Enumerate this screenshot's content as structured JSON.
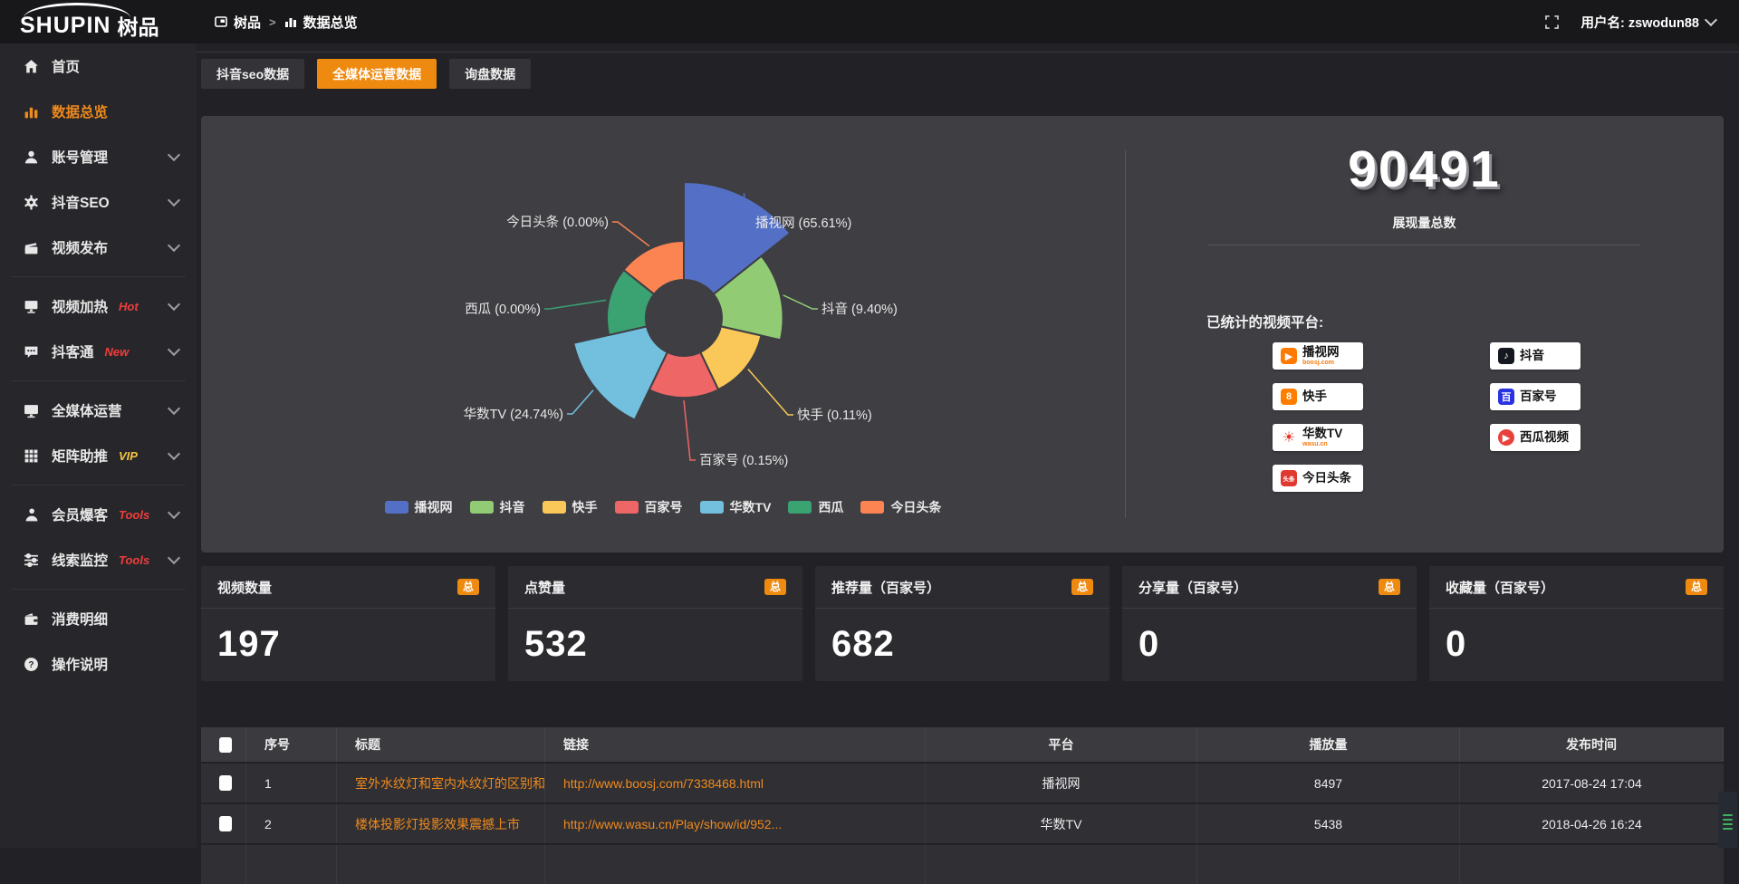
{
  "topbar": {
    "logo_main": "SHUPIN",
    "logo_cn": "树品",
    "breadcrumb_root": "树品",
    "breadcrumb_sep": ">",
    "breadcrumb_current": "数据总览",
    "username": "用户名: zswodun88"
  },
  "sidebar": {
    "items": [
      {
        "label": "首页",
        "icon": "home",
        "active": false,
        "expandable": false,
        "group_end": false
      },
      {
        "label": "数据总览",
        "icon": "chart-bars",
        "active": true,
        "expandable": false,
        "group_end": false
      },
      {
        "label": "账号管理",
        "icon": "user",
        "active": false,
        "expandable": true,
        "group_end": false
      },
      {
        "label": "抖音SEO",
        "icon": "gear",
        "active": false,
        "expandable": true,
        "group_end": false
      },
      {
        "label": "视频发布",
        "icon": "video-upload",
        "active": false,
        "expandable": true,
        "group_end": true
      },
      {
        "label": "视频加热",
        "icon": "screen",
        "badge": "Hot",
        "badge_color": "#f23c3c",
        "active": false,
        "expandable": true,
        "group_end": false
      },
      {
        "label": "抖客通",
        "icon": "chat",
        "badge": "New",
        "badge_color": "#f23c3c",
        "active": false,
        "expandable": true,
        "group_end": true
      },
      {
        "label": "全媒体运营",
        "icon": "monitor",
        "active": false,
        "expandable": true,
        "group_end": false
      },
      {
        "label": "矩阵助推",
        "icon": "grid",
        "badge": "VIP",
        "badge_color": "#f5c542",
        "active": false,
        "expandable": true,
        "group_end": true
      },
      {
        "label": "会员爆客",
        "icon": "person",
        "badge": "Tools",
        "badge_color": "#f23c3c",
        "active": false,
        "expandable": true,
        "group_end": false
      },
      {
        "label": "线索监控",
        "icon": "sliders",
        "badge": "Tools",
        "badge_color": "#f23c3c",
        "active": false,
        "expandable": true,
        "group_end": true
      },
      {
        "label": "消费明细",
        "icon": "wallet",
        "active": false,
        "expandable": false,
        "group_end": false
      },
      {
        "label": "操作说明",
        "icon": "question",
        "active": false,
        "expandable": false,
        "group_end": false
      }
    ]
  },
  "tabs": [
    {
      "label": "抖音seo数据",
      "active": false
    },
    {
      "label": "全媒体运营数据",
      "active": true
    },
    {
      "label": "询盘数据",
      "active": false
    }
  ],
  "chart_data": {
    "type": "pie",
    "variant": "nightingale-rose",
    "title": "",
    "legend_position": "bottom",
    "items": [
      {
        "name": "播视网",
        "pct": 65.61,
        "label": "播视网 (65.61%)",
        "color": "#5470c6"
      },
      {
        "name": "抖音",
        "pct": 9.4,
        "label": "抖音 (9.40%)",
        "color": "#91cc75"
      },
      {
        "name": "快手",
        "pct": 0.11,
        "label": "快手 (0.11%)",
        "color": "#fac858"
      },
      {
        "name": "百家号",
        "pct": 0.15,
        "label": "百家号 (0.15%)",
        "color": "#ee6666"
      },
      {
        "name": "华数TV",
        "pct": 24.74,
        "label": "华数TV (24.74%)",
        "color": "#73c0de"
      },
      {
        "name": "西瓜",
        "pct": 0.0,
        "label": "西瓜 (0.00%)",
        "color": "#3ba272"
      },
      {
        "name": "今日头条",
        "pct": 0.0,
        "label": "今日头条 (0.00%)",
        "color": "#fc8452"
      }
    ]
  },
  "summary": {
    "total_value": "90491",
    "total_label": "展现量总数",
    "platforms_title": "已统计的视频平台:",
    "platforms_left": [
      {
        "name": "播视网",
        "sub": "boosj.com",
        "icon": "boosj",
        "icon_glyph": "▶",
        "icon_bg": "#ff7a00",
        "icon_fg": "#ffffff"
      },
      {
        "name": "快手",
        "icon": "kuaishou",
        "icon_glyph": "8",
        "icon_bg": "#ff7e00",
        "icon_fg": "#ffffff"
      },
      {
        "name": "华数TV",
        "sub": "wasu.cn",
        "icon": "wasu",
        "icon_glyph": "☀",
        "icon_bg": "transparent",
        "icon_fg": "#e53328"
      },
      {
        "name": "今日头条",
        "icon": "toutiao",
        "icon_glyph": "头条",
        "icon_bg": "#e0392f",
        "icon_fg": "#ffffff"
      }
    ],
    "platforms_right": [
      {
        "name": "抖音",
        "icon": "douyin",
        "icon_glyph": "♪",
        "icon_bg": "#16181f",
        "icon_fg": "#ffffff"
      },
      {
        "name": "百家号",
        "icon": "baijiahao",
        "icon_glyph": "百",
        "icon_bg": "#2932e1",
        "icon_fg": "#ffffff"
      },
      {
        "name": "西瓜视频",
        "icon": "xigua",
        "icon_glyph": "▶",
        "icon_bg": "#e8413c",
        "icon_fg": "#ffffff"
      }
    ]
  },
  "stat_cards": [
    {
      "title": "视频数量",
      "badge": "总",
      "value": "197"
    },
    {
      "title": "点赞量",
      "badge": "总",
      "value": "532"
    },
    {
      "title": "推荐量（百家号）",
      "badge": "总",
      "value": "682"
    },
    {
      "title": "分享量（百家号）",
      "badge": "总",
      "value": "0"
    },
    {
      "title": "收藏量（百家号）",
      "badge": "总",
      "value": "0"
    }
  ],
  "table": {
    "headers": [
      "序号",
      "标题",
      "链接",
      "平台",
      "播放量",
      "发布时间"
    ],
    "rows": [
      {
        "cells": [
          "1",
          "室外水纹灯和室内水纹灯的区别和简介",
          "http://www.boosj.com/7338468.html",
          "播视网",
          "8497",
          "2017-08-24 17:04"
        ]
      },
      {
        "cells": [
          "2",
          "楼体投影灯投影效果震撼上市",
          "http://www.wasu.cn/Play/show/id/952...",
          "华数TV",
          "5438",
          "2018-04-26 16:24"
        ]
      }
    ]
  }
}
